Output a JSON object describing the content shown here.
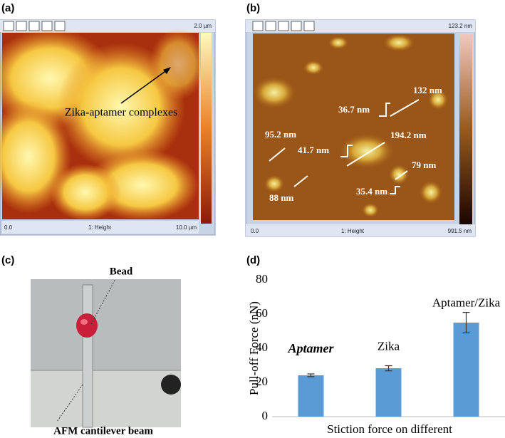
{
  "panels": {
    "a": {
      "label": "(a)",
      "scale_top": "2.0 µm",
      "footer_left": "0.0",
      "footer_mid": "1: Height",
      "footer_right": "10.0 µm",
      "annotation": "Zika-aptamer complexes"
    },
    "b": {
      "label": "(b)",
      "scale_top": "123.2 nm",
      "footer_left": "0.0",
      "footer_mid": "1: Height",
      "footer_right": "991.5 nm",
      "measurements": [
        "132 nm",
        "36.7 nm",
        "95.2 nm",
        "41.7 nm",
        "194.2 nm",
        "79 nm",
        "88 nm",
        "35.4 nm"
      ]
    },
    "c": {
      "label": "(c)",
      "bead": "Bead",
      "beam": "AFM cantilever beam"
    }
  },
  "chart_data": {
    "type": "bar",
    "label": "(d)",
    "y_label": "Pull-off Force (nN)",
    "x_label": "Stiction force on different",
    "categories": [
      "Aptamer",
      "Zika",
      "Aptamer/Zika"
    ],
    "values": [
      24.2,
      28.3,
      55
    ],
    "errors": [
      0.8,
      1.5,
      6
    ],
    "color": "#5b9bd5",
    "ylim": [
      0,
      80
    ],
    "yticks": [
      0,
      20,
      40,
      60,
      80
    ]
  }
}
